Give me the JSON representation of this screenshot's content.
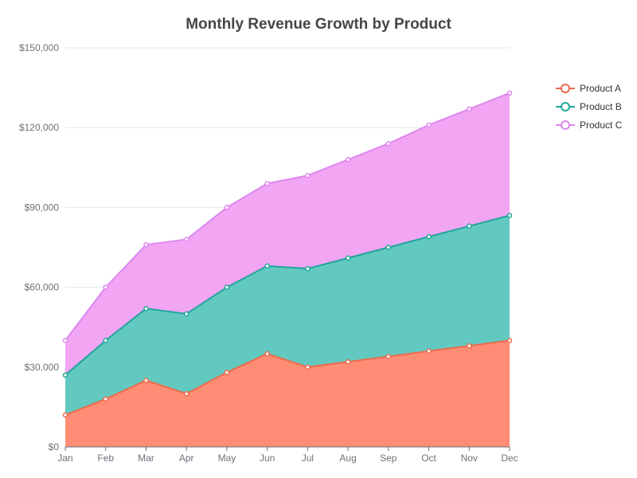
{
  "chart_data": {
    "type": "area",
    "stacked": true,
    "title": "Monthly Revenue Growth by Product",
    "xlabel": "",
    "ylabel": "",
    "categories": [
      "Jan",
      "Feb",
      "Mar",
      "Apr",
      "May",
      "Jun",
      "Jul",
      "Aug",
      "Sep",
      "Oct",
      "Nov",
      "Dec"
    ],
    "ylim": [
      0,
      150000
    ],
    "y_ticks": [
      0,
      30000,
      60000,
      90000,
      120000,
      150000
    ],
    "y_tick_labels": [
      "$0",
      "$30,000",
      "$60,000",
      "$90,000",
      "$120,000",
      "$150,000"
    ],
    "grid": true,
    "legend_position": "right",
    "series": [
      {
        "name": "Product A",
        "color": "#ee6b4d",
        "fill": "#ff8c75",
        "values": [
          12000,
          18000,
          25000,
          20000,
          28000,
          35000,
          30000,
          32000,
          34000,
          36000,
          38000,
          40000
        ]
      },
      {
        "name": "Product B",
        "color": "#20a59a",
        "fill": "#62c9c0",
        "values": [
          15000,
          22000,
          27000,
          30000,
          32000,
          33000,
          37000,
          39000,
          41000,
          43000,
          45000,
          47000
        ]
      },
      {
        "name": "Product C",
        "color": "#dd88ee",
        "fill": "#f1a5f3",
        "values": [
          13000,
          20000,
          24000,
          28000,
          30000,
          31000,
          35000,
          37000,
          39000,
          42000,
          44000,
          46000
        ]
      }
    ]
  }
}
